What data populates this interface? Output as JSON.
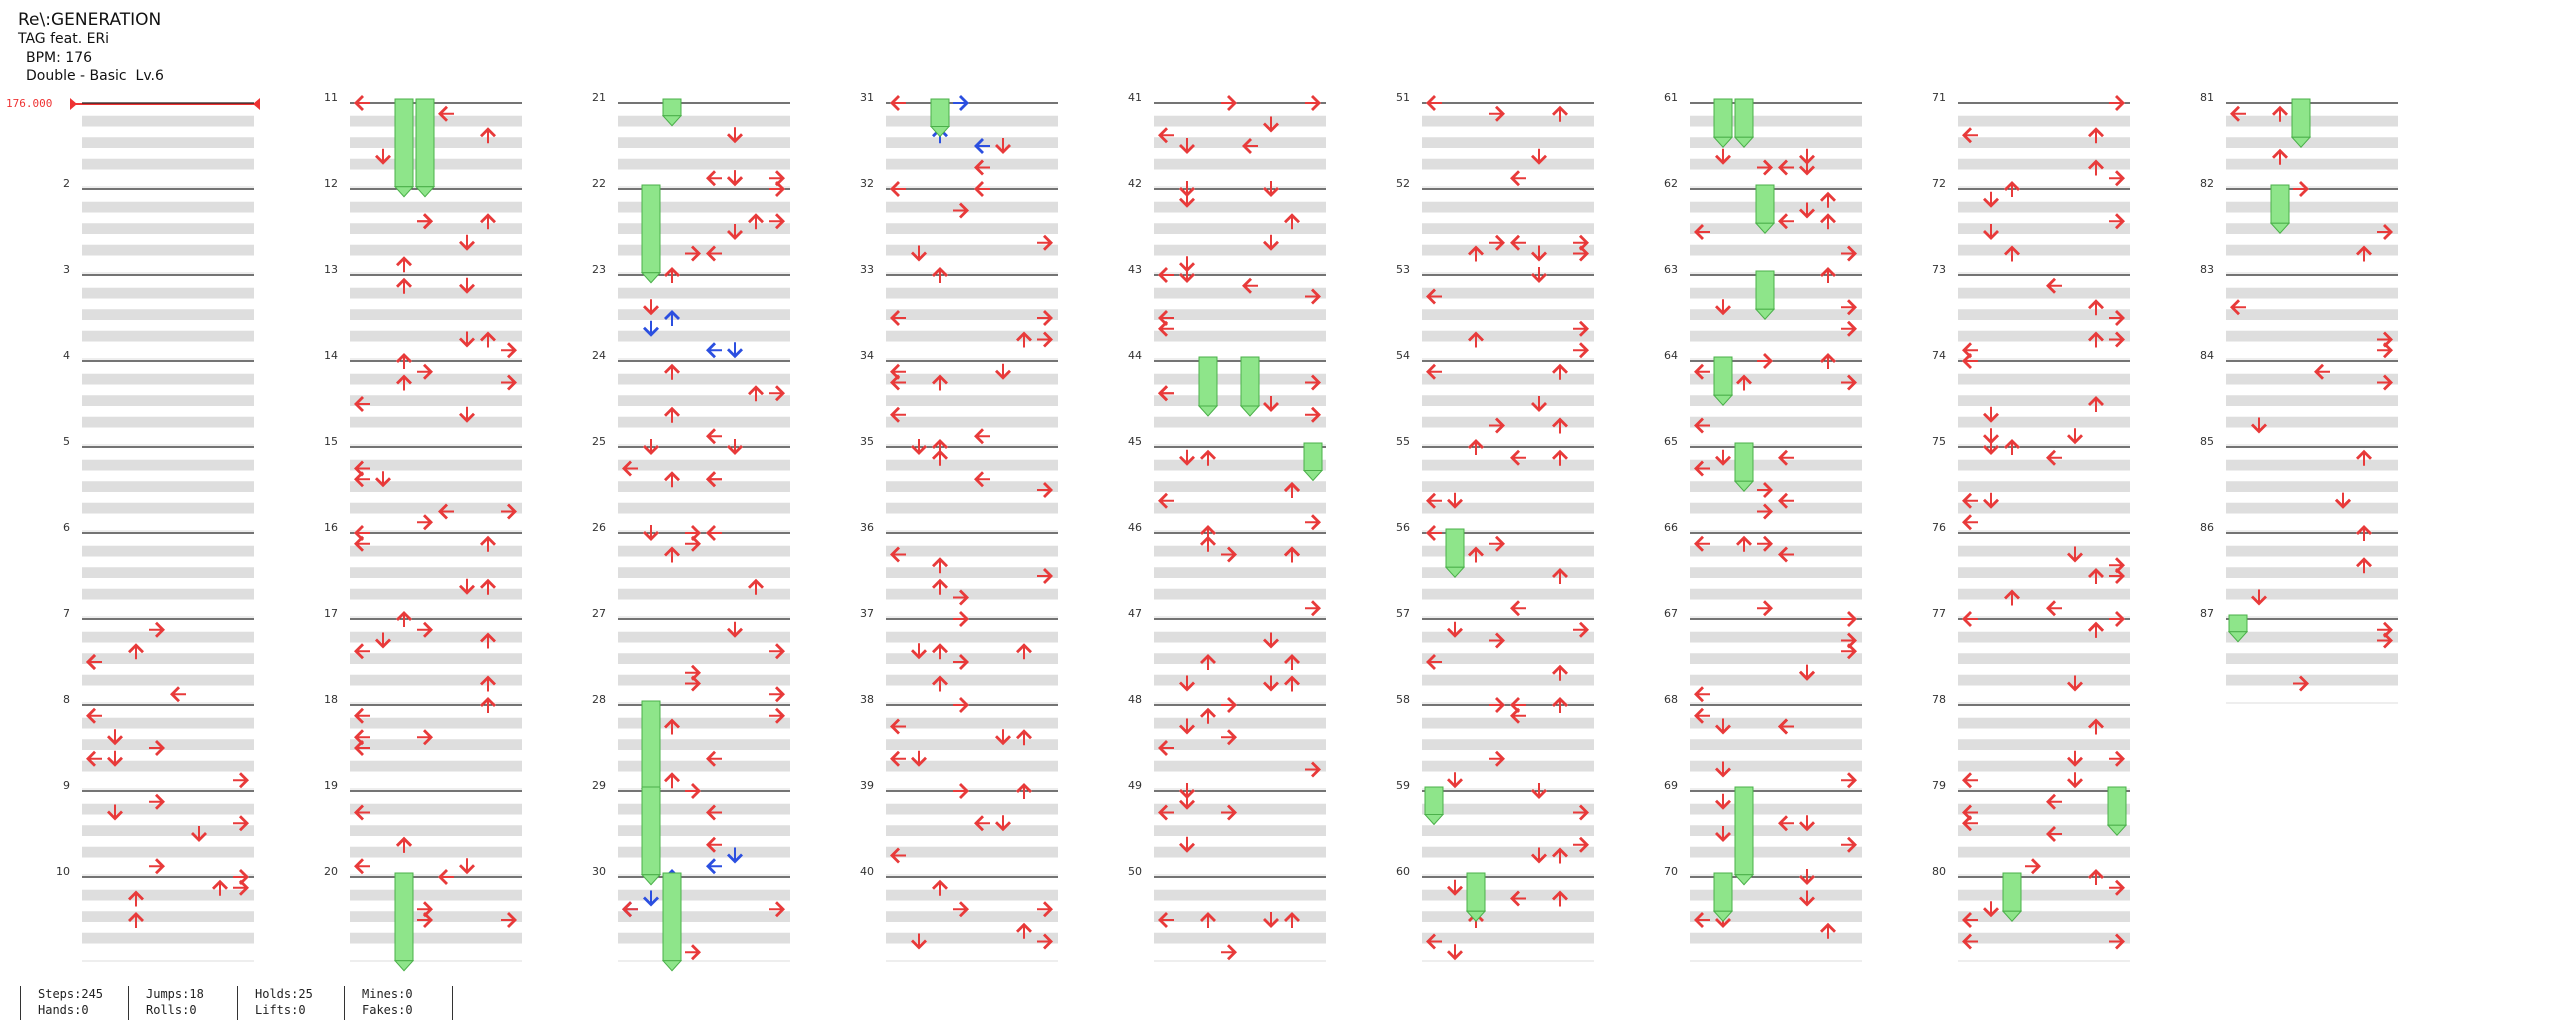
{
  "song": {
    "title": "Re\\:GENERATION",
    "artist": "TAG feat. ERi",
    "bpm_label": "BPM: 176",
    "difficulty": "Double - Basic  Lv.6"
  },
  "bpm_marker": "176.000",
  "colors": {
    "arrow_red": "#e83a3a",
    "arrow_blue": "#2b4fe0",
    "hold_green": "#8ee58a",
    "hold_stroke": "#4bb04a",
    "row_grey": "#dedede",
    "measure_line": "#222222"
  },
  "chart_data": {
    "type": "table",
    "measures": [
      "2",
      "3",
      "4",
      "5",
      "6",
      "7",
      "8",
      "9",
      "10",
      "11",
      "12",
      "13",
      "14",
      "15",
      "16",
      "17",
      "18",
      "19",
      "20",
      "21",
      "22",
      "23",
      "24",
      "25",
      "26",
      "27",
      "28",
      "29",
      "30",
      "31",
      "32",
      "33",
      "34",
      "35",
      "36",
      "37",
      "38",
      "39",
      "40",
      "41",
      "42",
      "43",
      "44",
      "45",
      "46",
      "47",
      "48",
      "49",
      "50",
      "51",
      "52",
      "53",
      "54",
      "55",
      "56",
      "57",
      "58",
      "59",
      "60",
      "61",
      "62",
      "63",
      "64",
      "65",
      "66",
      "67",
      "68",
      "69",
      "70",
      "71",
      "72",
      "73",
      "74",
      "75",
      "76",
      "77",
      "78",
      "79",
      "80",
      "81",
      "82",
      "83",
      "84",
      "85",
      "86",
      "87"
    ]
  },
  "stats": {
    "steps": "Steps:245",
    "hands": "Hands:0",
    "jumps": "Jumps:18",
    "rolls": "Rolls:0",
    "holds": "Holds:25",
    "lifts": "Lifts:0",
    "mines": "Mines:0",
    "fakes": "Fakes:0"
  }
}
